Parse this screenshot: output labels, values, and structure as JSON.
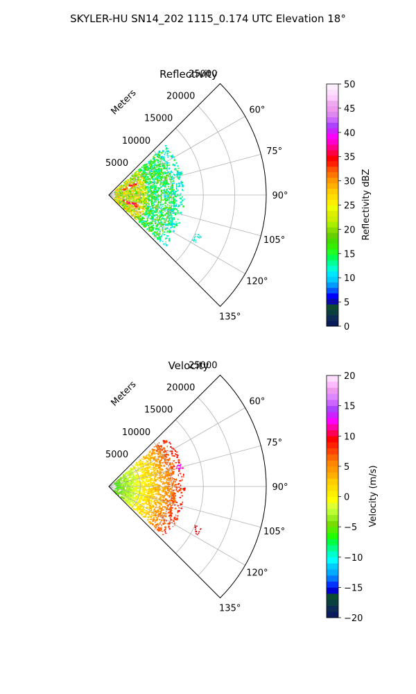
{
  "figure": {
    "suptitle": "SKYLER-HU  SN14_202  1115_0.174 UTC Elevation 18°"
  },
  "chart_data": [
    {
      "type": "polar-sector",
      "title": "Reflectivity",
      "radial_label": "Meters",
      "theta_range_deg": [
        45,
        135
      ],
      "theta_ticks": [
        "60°",
        "75°",
        "90°",
        "105°",
        "120°",
        "135°"
      ],
      "radial_ticks": [
        5000,
        10000,
        15000,
        20000,
        25000
      ],
      "radial_max": 25000,
      "grid": true,
      "echo_field_max_range_m": 12000,
      "colorbar": {
        "label": "Reflectivity dBZ",
        "range": [
          0,
          50
        ],
        "ticks": [
          0,
          5,
          10,
          15,
          20,
          25,
          30,
          35,
          40,
          45,
          50
        ],
        "colors": [
          "#0a1a5a",
          "#0c2a55",
          "#0b3e3e",
          "#0c4a32",
          "#0a0aa8",
          "#0000ff",
          "#0055ff",
          "#0099ff",
          "#00ccff",
          "#00e5ff",
          "#00ffd0",
          "#00ff99",
          "#00ff55",
          "#22ff22",
          "#33ee00",
          "#44dd00",
          "#66d000",
          "#88dd00",
          "#aaee00",
          "#ccee00",
          "#ddee00",
          "#eeff00",
          "#ffee00",
          "#ffdd00",
          "#ffcc00",
          "#ffb000",
          "#ff9900",
          "#ff7700",
          "#ff5500",
          "#ff2200",
          "#ff0000",
          "#ff0044",
          "#ff0088",
          "#ff00cc",
          "#ff00ff",
          "#cc22ff",
          "#aa44ff",
          "#cc66ff",
          "#dd88ee",
          "#ee99ee",
          "#eeaaee",
          "#ffccff",
          "#ffddff",
          "#ffeeff"
        ]
      }
    },
    {
      "type": "polar-sector",
      "title": "Velocity",
      "radial_label": "Meters",
      "theta_range_deg": [
        45,
        135
      ],
      "theta_ticks": [
        "60°",
        "75°",
        "90°",
        "105°",
        "120°",
        "135°"
      ],
      "radial_ticks": [
        5000,
        10000,
        15000,
        20000,
        25000
      ],
      "radial_max": 25000,
      "grid": true,
      "echo_field_max_range_m": 12000,
      "colorbar": {
        "label": "Velocity (m/s)",
        "range": [
          -20,
          20
        ],
        "ticks": [
          -20,
          -15,
          -10,
          -5,
          0,
          5,
          10,
          15,
          20
        ],
        "colors": [
          "#0a1a5a",
          "#0c2a55",
          "#0b3e3e",
          "#0c4a32",
          "#0000cc",
          "#0033ff",
          "#0077ff",
          "#00aaff",
          "#00ccff",
          "#00ffff",
          "#00ffcc",
          "#00ff88",
          "#00ff44",
          "#22ff00",
          "#55ee00",
          "#77dd00",
          "#99ee22",
          "#bbff33",
          "#ddff33",
          "#ffff00",
          "#ffee00",
          "#ffdd00",
          "#ffcc00",
          "#ffb000",
          "#ff9900",
          "#ff8800",
          "#ff6600",
          "#ff4400",
          "#ff2200",
          "#ff0000",
          "#ff0055",
          "#ff00aa",
          "#ff00ff",
          "#cc22ff",
          "#aa44ff",
          "#cc66ff",
          "#dd88ff",
          "#ee99ee",
          "#ffbbff",
          "#ffddff"
        ]
      }
    }
  ]
}
